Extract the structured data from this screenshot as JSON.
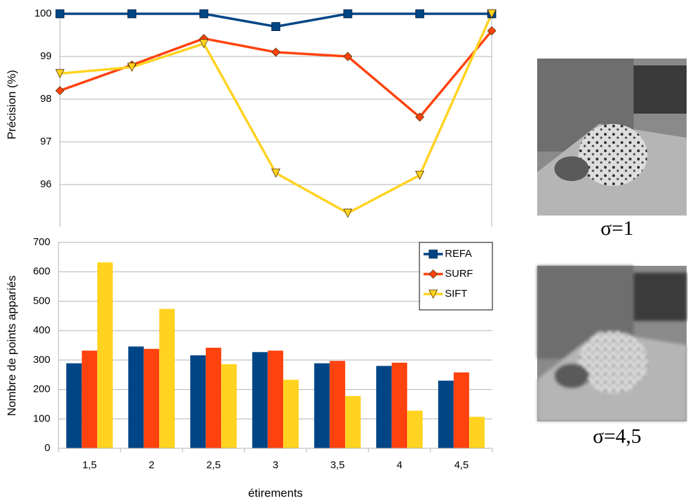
{
  "chart_data": [
    {
      "type": "line",
      "ylabel": "Précision (%)",
      "ylim": [
        95,
        100
      ],
      "yticks": [
        96,
        97,
        98,
        99,
        100
      ],
      "grid": true,
      "legend": "upper right",
      "series": [
        {
          "name": "REFA",
          "color": "#004586",
          "marker": "square",
          "values": [
            100,
            100,
            100,
            99.7,
            100,
            100,
            100
          ]
        },
        {
          "name": "SURF",
          "color": "#ff420e",
          "marker": "diamond",
          "values": [
            98.2,
            98.8,
            99.42,
            99.1,
            99.0,
            97.58,
            99.6
          ]
        },
        {
          "name": "SIFT",
          "color": "#ffd320",
          "marker": "triangle-down",
          "values": [
            98.6,
            98.75,
            99.3,
            96.27,
            95.33,
            96.22,
            100
          ]
        }
      ]
    },
    {
      "type": "bar",
      "ylabel": "Nombre de points appariés",
      "xlabel": "étirements",
      "categories": [
        "1,5",
        "2",
        "2,5",
        "3",
        "3,5",
        "4",
        "4,5"
      ],
      "ylim": [
        0,
        700
      ],
      "yticks": [
        0,
        100,
        200,
        300,
        400,
        500,
        600,
        700
      ],
      "grid": true,
      "series": [
        {
          "color": "#004586",
          "values": [
            289,
            346,
            316,
            327,
            289,
            280,
            230
          ]
        },
        {
          "color": "#ff420e",
          "values": [
            332,
            338,
            342,
            332,
            297,
            291,
            258
          ]
        },
        {
          "color": "#ffd320",
          "values": [
            632,
            474,
            286,
            233,
            178,
            128,
            107
          ]
        }
      ]
    }
  ],
  "images": [
    {
      "label": "σ=1"
    },
    {
      "label": "σ=4,5"
    }
  ]
}
